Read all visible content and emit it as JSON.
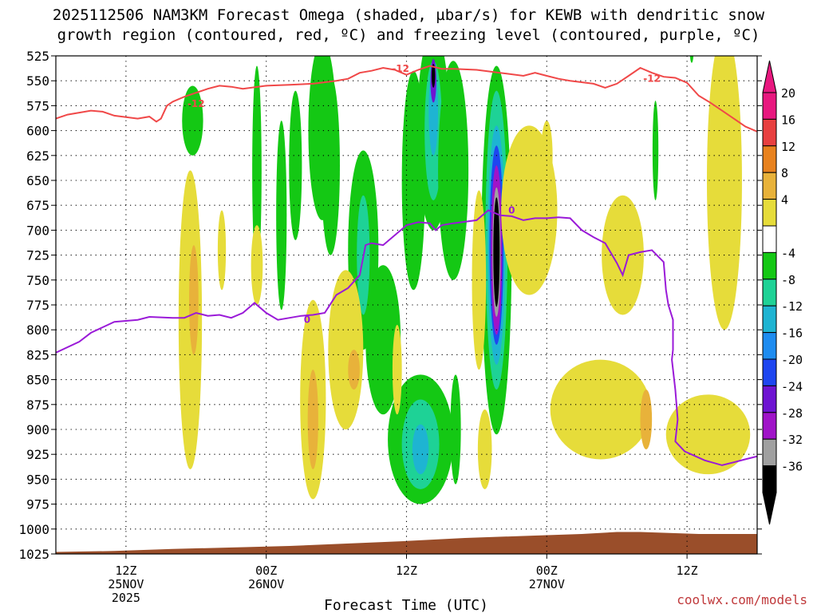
{
  "chart_data": {
    "type": "heatmap",
    "title_line1": "2025112506 NAM3KM Forecast Omega (shaded, µbar/s) for KEWB with dendritic snow",
    "title_line2": "growth region (contoured, red, ºC) and freezing level (contoured, purple, ºC)",
    "xlabel": "Forecast Time (UTC)",
    "credit": "coolwx.com/models",
    "y_levels": [
      525,
      550,
      575,
      600,
      625,
      650,
      675,
      700,
      725,
      750,
      775,
      800,
      825,
      850,
      875,
      900,
      925,
      950,
      975,
      1000,
      1025
    ],
    "ylim": [
      525,
      1025
    ],
    "x_hours_range": [
      0,
      60
    ],
    "x_ticks": [
      {
        "hour": 6,
        "time": "12Z",
        "date": "25NOV",
        "year": "2025"
      },
      {
        "hour": 18,
        "time": "00Z",
        "date": "26NOV",
        "year": ""
      },
      {
        "hour": 30,
        "time": "12Z",
        "date": "",
        "year": ""
      },
      {
        "hour": 42,
        "time": "00Z",
        "date": "27NOV",
        "year": ""
      },
      {
        "hour": 54,
        "time": "12Z",
        "date": "",
        "year": ""
      }
    ],
    "colorbar": {
      "labels": [
        "20",
        "16",
        "12",
        "8",
        "4",
        "-4",
        "-8",
        "-12",
        "-16",
        "-20",
        "-24",
        "-28",
        "-32",
        "-36"
      ],
      "colors": [
        "#e8187f",
        "#e84040",
        "#e8821e",
        "#e8b23a",
        "#e6dc3a",
        "#ffffff",
        "#14c814",
        "#1ed296",
        "#1eb4d2",
        "#1e8cf0",
        "#1e46f0",
        "#6e14d2",
        "#a014c8",
        "#a0a0a0",
        "#000000"
      ],
      "top_arrow_color": "#e8187f",
      "bottom_arrow_color": "#000000"
    },
    "series": [
      {
        "name": "dendritic snow growth -12 C",
        "color": "#f04848",
        "label": "-12",
        "points": [
          [
            0,
            588
          ],
          [
            1,
            584
          ],
          [
            3,
            580
          ],
          [
            4,
            581
          ],
          [
            5,
            585
          ],
          [
            7,
            588
          ],
          [
            8,
            586
          ],
          [
            8.6,
            591
          ],
          [
            9,
            588
          ],
          [
            9.5,
            575
          ],
          [
            10,
            571
          ],
          [
            11,
            566
          ],
          [
            13,
            558
          ],
          [
            14,
            555
          ],
          [
            15,
            556
          ],
          [
            16,
            558
          ],
          [
            18,
            555
          ],
          [
            20,
            554
          ],
          [
            22,
            553
          ],
          [
            24,
            550
          ],
          [
            25,
            548
          ],
          [
            26,
            542
          ],
          [
            27,
            540
          ],
          [
            28,
            537
          ],
          [
            29,
            539
          ],
          [
            30,
            544
          ],
          [
            31,
            539
          ],
          [
            32,
            535
          ],
          [
            33,
            538
          ],
          [
            34,
            538
          ],
          [
            36,
            539
          ],
          [
            38,
            542
          ],
          [
            40,
            545
          ],
          [
            41,
            542
          ],
          [
            42,
            545
          ],
          [
            43,
            548
          ],
          [
            44,
            550
          ],
          [
            46,
            553
          ],
          [
            47,
            557
          ],
          [
            48,
            553
          ],
          [
            49,
            545
          ],
          [
            50,
            537
          ],
          [
            51,
            542
          ],
          [
            52,
            546
          ],
          [
            53,
            547
          ],
          [
            54,
            552
          ],
          [
            55,
            565
          ],
          [
            56,
            572
          ],
          [
            57,
            580
          ],
          [
            58,
            588
          ],
          [
            59,
            596
          ],
          [
            60,
            601
          ]
        ],
        "labels_at": [
          [
            29.5,
            538
          ],
          [
            12,
            573
          ],
          [
            51,
            548
          ]
        ]
      },
      {
        "name": "freezing level 0 C",
        "color": "#9a1ad8",
        "label": "0",
        "points": [
          [
            0,
            823
          ],
          [
            2,
            812
          ],
          [
            3,
            803
          ],
          [
            5,
            792
          ],
          [
            7,
            790
          ],
          [
            8,
            787
          ],
          [
            10,
            788
          ],
          [
            11,
            788
          ],
          [
            12,
            783
          ],
          [
            13,
            786
          ],
          [
            14,
            785
          ],
          [
            15,
            788
          ],
          [
            16,
            783
          ],
          [
            17,
            773
          ],
          [
            18,
            783
          ],
          [
            19,
            790
          ],
          [
            20,
            788
          ],
          [
            21,
            786
          ],
          [
            22,
            785
          ],
          [
            23,
            783
          ],
          [
            24,
            765
          ],
          [
            25,
            758
          ],
          [
            26,
            745
          ],
          [
            26.5,
            715
          ],
          [
            27,
            713
          ],
          [
            28,
            715
          ],
          [
            29,
            705
          ],
          [
            30,
            695
          ],
          [
            31,
            692
          ],
          [
            32,
            693
          ],
          [
            32.5,
            700
          ],
          [
            33,
            695
          ],
          [
            34,
            693
          ],
          [
            36,
            690
          ],
          [
            37,
            680
          ],
          [
            38,
            685
          ],
          [
            39,
            686
          ],
          [
            40,
            690
          ],
          [
            41,
            688
          ],
          [
            42,
            688
          ],
          [
            43,
            687
          ],
          [
            44,
            688
          ],
          [
            45,
            700
          ],
          [
            46,
            707
          ],
          [
            47,
            713
          ],
          [
            48,
            733
          ],
          [
            48.5,
            745
          ],
          [
            49,
            725
          ],
          [
            50,
            722
          ],
          [
            51,
            720
          ],
          [
            52,
            732
          ],
          [
            52.2,
            760
          ],
          [
            52.4,
            775
          ],
          [
            52.8,
            790
          ],
          [
            52.8,
            820
          ],
          [
            52.7,
            830
          ],
          [
            53.0,
            860
          ],
          [
            53.2,
            890
          ],
          [
            53.0,
            912
          ],
          [
            53.8,
            922
          ],
          [
            55.5,
            931
          ],
          [
            57,
            936
          ],
          [
            58,
            933
          ],
          [
            59,
            930
          ],
          [
            60,
            927
          ]
        ],
        "labels_at": [
          [
            21.5,
            790
          ],
          [
            39,
            680
          ]
        ]
      }
    ],
    "shaded_blobs": [
      {
        "color": "#14c814",
        "center": [
          11.7,
          590
        ],
        "rx": 0.9,
        "ry": 35
      },
      {
        "color": "#14c814",
        "center": [
          17.2,
          640
        ],
        "rx": 0.4,
        "ry": 105
      },
      {
        "color": "#14c814",
        "center": [
          19.3,
          685
        ],
        "rx": 0.45,
        "ry": 95
      },
      {
        "color": "#14c814",
        "center": [
          20.5,
          635
        ],
        "rx": 0.55,
        "ry": 75
      },
      {
        "color": "#14c814",
        "center": [
          23.5,
          635
        ],
        "rx": 0.8,
        "ry": 90
      },
      {
        "color": "#14c814",
        "center": [
          22.8,
          600
        ],
        "rx": 1.2,
        "ry": 90
      },
      {
        "color": "#14c814",
        "center": [
          26.3,
          720
        ],
        "rx": 1.3,
        "ry": 100
      },
      {
        "color": "#1ed296",
        "center": [
          26.3,
          725
        ],
        "rx": 0.55,
        "ry": 60
      },
      {
        "color": "#14c814",
        "center": [
          28,
          810
        ],
        "rx": 1.5,
        "ry": 75
      },
      {
        "color": "#14c814",
        "center": [
          31.2,
          910
        ],
        "rx": 2.8,
        "ry": 65
      },
      {
        "color": "#1ed296",
        "center": [
          31.2,
          915
        ],
        "rx": 1.6,
        "ry": 45
      },
      {
        "color": "#1eb4d2",
        "center": [
          31.2,
          920
        ],
        "rx": 0.7,
        "ry": 25
      },
      {
        "color": "#14c814",
        "center": [
          30.6,
          650
        ],
        "rx": 1.0,
        "ry": 110
      },
      {
        "color": "#14c814",
        "center": [
          32.3,
          600
        ],
        "rx": 1.4,
        "ry": 100
      },
      {
        "color": "#1ed296",
        "center": [
          32.3,
          600
        ],
        "rx": 0.75,
        "ry": 70
      },
      {
        "color": "#1eb4d2",
        "center": [
          32.3,
          580
        ],
        "rx": 0.4,
        "ry": 45
      },
      {
        "color": "#6e14d2",
        "center": [
          32.3,
          550
        ],
        "rx": 0.25,
        "ry": 22
      },
      {
        "color": "#000000",
        "center": [
          32.3,
          545
        ],
        "rx": 0.15,
        "ry": 12
      },
      {
        "color": "#14c814",
        "center": [
          34.0,
          640
        ],
        "rx": 1.3,
        "ry": 110
      },
      {
        "color": "#14c814",
        "center": [
          34.2,
          900
        ],
        "rx": 0.45,
        "ry": 55
      },
      {
        "color": "#14c814",
        "center": [
          37.7,
          720
        ],
        "rx": 1.3,
        "ry": 185
      },
      {
        "color": "#1ed296",
        "center": [
          37.7,
          710
        ],
        "rx": 0.95,
        "ry": 150
      },
      {
        "color": "#1eb4d2",
        "center": [
          37.7,
          715
        ],
        "rx": 0.75,
        "ry": 120
      },
      {
        "color": "#1e46f0",
        "center": [
          37.7,
          715
        ],
        "rx": 0.6,
        "ry": 100
      },
      {
        "color": "#a014c8",
        "center": [
          37.7,
          720
        ],
        "rx": 0.48,
        "ry": 85
      },
      {
        "color": "#a0a0a0",
        "center": [
          37.7,
          722
        ],
        "rx": 0.35,
        "ry": 65
      },
      {
        "color": "#000000",
        "center": [
          37.7,
          722
        ],
        "rx": 0.27,
        "ry": 55
      },
      {
        "color": "#14c814",
        "center": [
          51.3,
          620
        ],
        "rx": 0.25,
        "ry": 50
      },
      {
        "color": "#14c814",
        "center": [
          54.4,
          522
        ],
        "rx": 0.15,
        "ry": 10
      },
      {
        "color": "#e6dc3a",
        "center": [
          11.5,
          790
        ],
        "rx": 1.0,
        "ry": 150
      },
      {
        "color": "#e8b23a",
        "center": [
          11.8,
          770
        ],
        "rx": 0.4,
        "ry": 55
      },
      {
        "color": "#e6dc3a",
        "center": [
          14.2,
          720
        ],
        "rx": 0.35,
        "ry": 40
      },
      {
        "color": "#e6dc3a",
        "center": [
          17.2,
          735
        ],
        "rx": 0.5,
        "ry": 40
      },
      {
        "color": "#e6dc3a",
        "center": [
          22.0,
          870
        ],
        "rx": 1.1,
        "ry": 100
      },
      {
        "color": "#e8b23a",
        "center": [
          22.0,
          890
        ],
        "rx": 0.45,
        "ry": 50
      },
      {
        "color": "#e6dc3a",
        "center": [
          24.8,
          820
        ],
        "rx": 1.5,
        "ry": 80
      },
      {
        "color": "#e8b23a",
        "center": [
          25.5,
          840
        ],
        "rx": 0.5,
        "ry": 20
      },
      {
        "color": "#e6dc3a",
        "center": [
          36.2,
          750
        ],
        "rx": 0.6,
        "ry": 90
      },
      {
        "color": "#e6dc3a",
        "center": [
          36.7,
          920
        ],
        "rx": 0.6,
        "ry": 40
      },
      {
        "color": "#e6dc3a",
        "center": [
          40.5,
          680
        ],
        "rx": 2.4,
        "ry": 85
      },
      {
        "color": "#e6dc3a",
        "center": [
          42.0,
          625
        ],
        "rx": 0.5,
        "ry": 35
      },
      {
        "color": "#e6dc3a",
        "center": [
          46.6,
          880
        ],
        "rx": 4.3,
        "ry": 50
      },
      {
        "color": "#e8b23a",
        "center": [
          50.5,
          890
        ],
        "rx": 0.5,
        "ry": 30
      },
      {
        "color": "#e6dc3a",
        "center": [
          55.8,
          905
        ],
        "rx": 3.6,
        "ry": 40
      },
      {
        "color": "#e6dc3a",
        "center": [
          57.2,
          650
        ],
        "rx": 1.5,
        "ry": 150
      },
      {
        "color": "#e6dc3a",
        "center": [
          48.5,
          725
        ],
        "rx": 1.8,
        "ry": 60
      },
      {
        "color": "#e6dc3a",
        "center": [
          29.2,
          840
        ],
        "rx": 0.4,
        "ry": 45
      }
    ]
  }
}
